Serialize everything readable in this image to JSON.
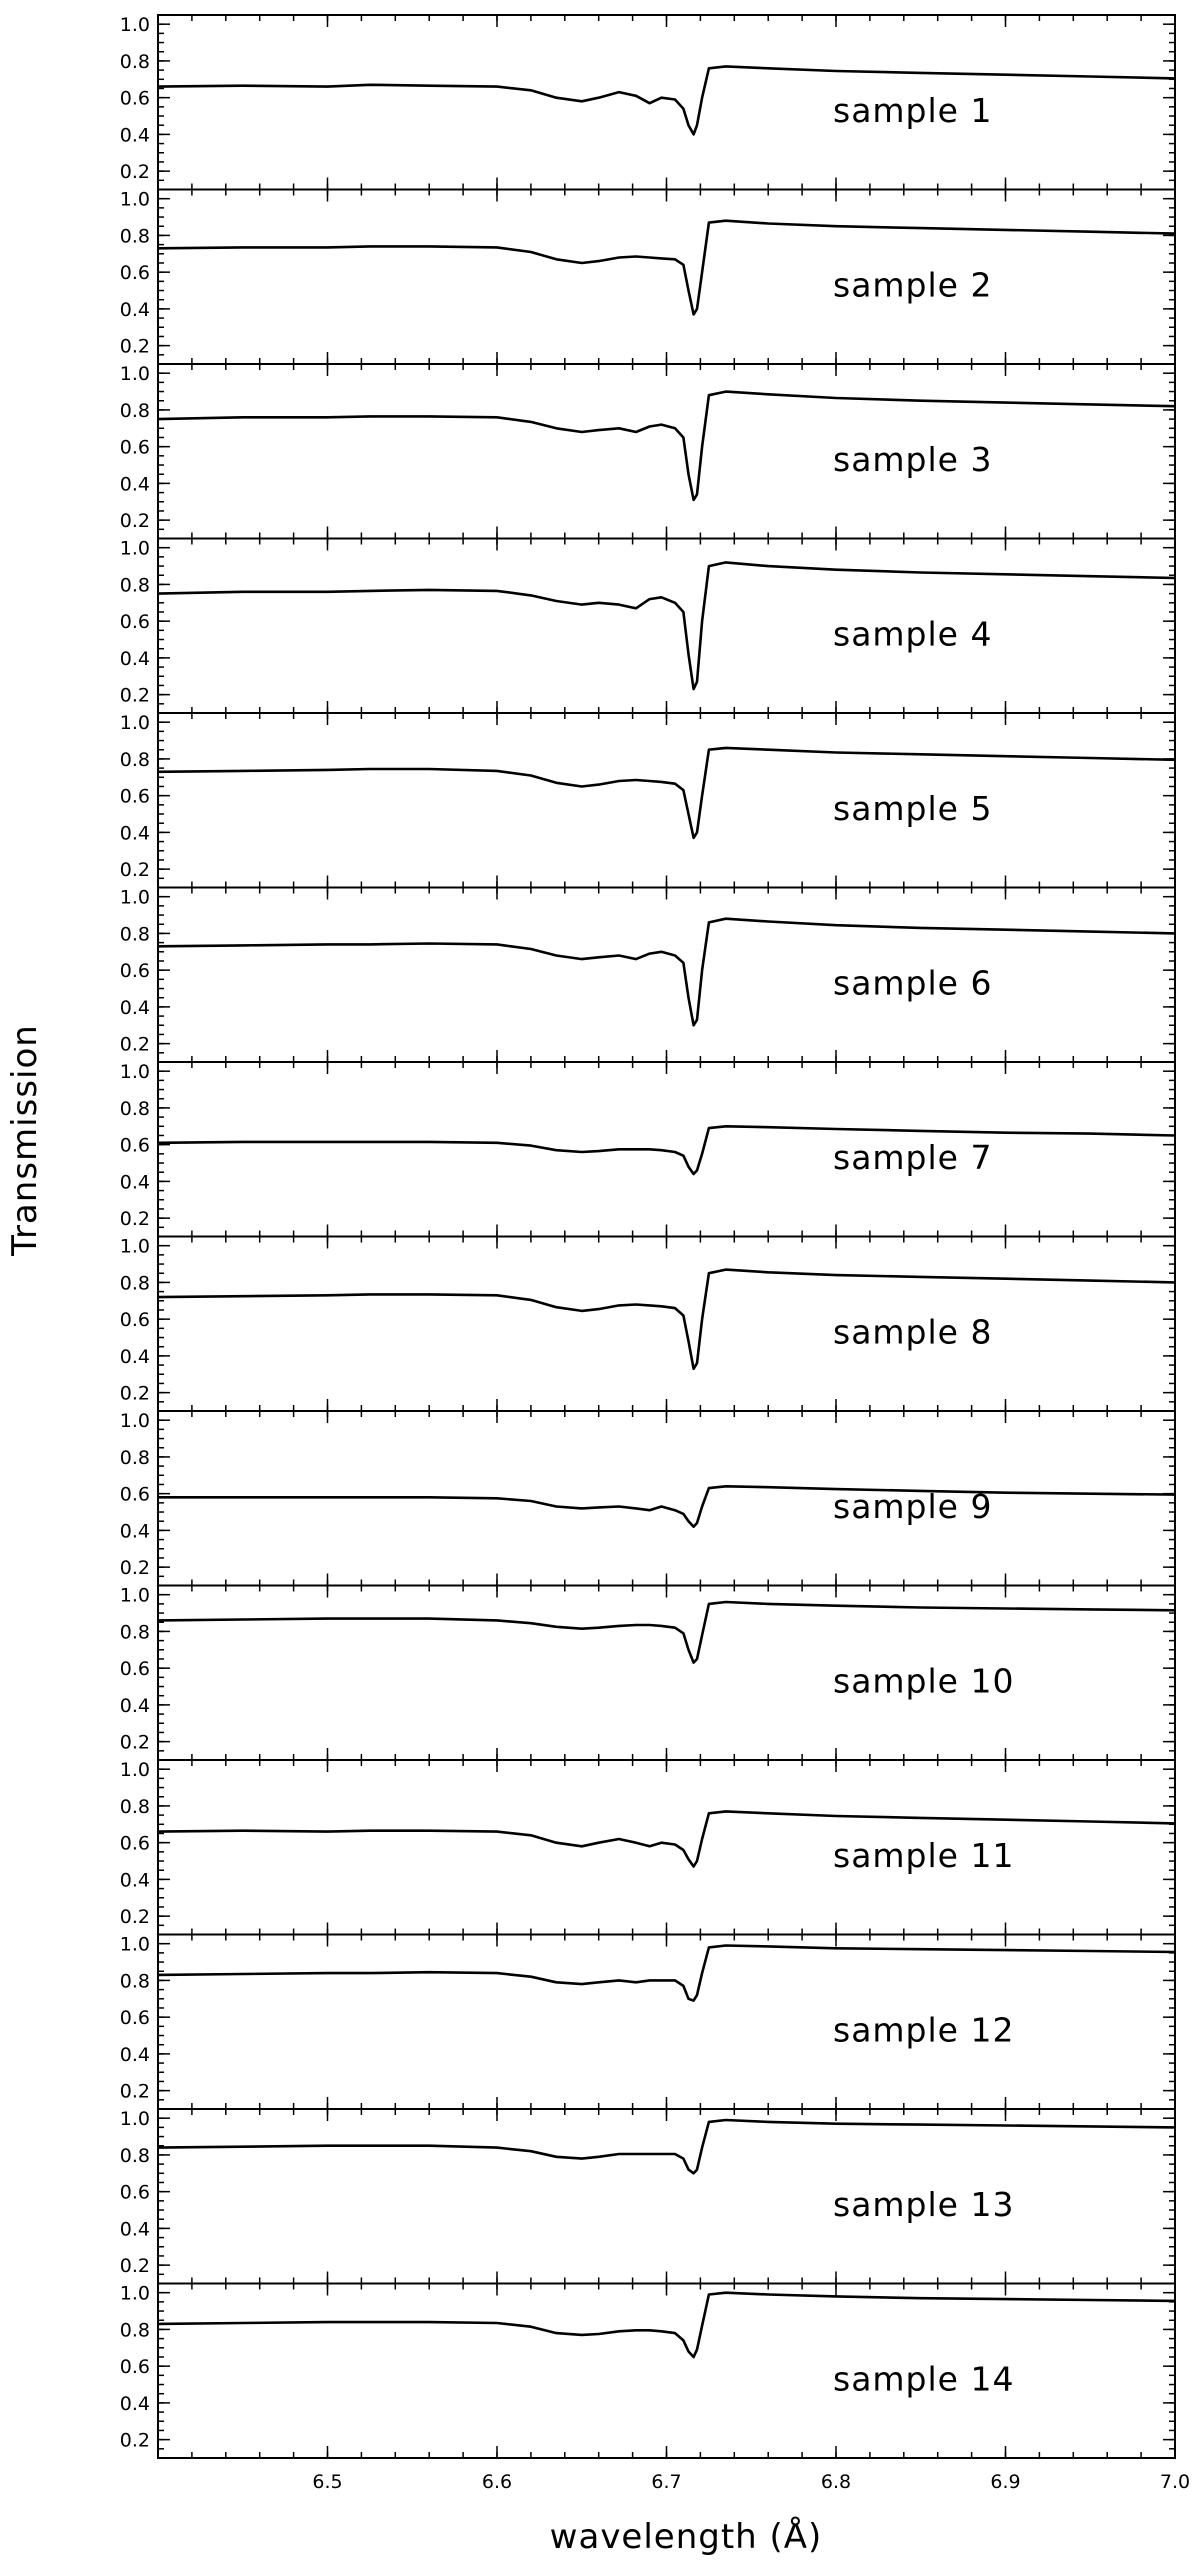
{
  "chart_data": {
    "type": "line",
    "xlabel": "wavelength (Å)",
    "ylabel": "Transmission",
    "xlim": [
      6.4,
      7.0
    ],
    "ylim": [
      0.1,
      1.05
    ],
    "x_tick_labels": [
      "6.5",
      "6.6",
      "6.7",
      "6.8",
      "6.9",
      "7.0"
    ],
    "x_ticks": [
      6.5,
      6.6,
      6.7,
      6.8,
      6.9,
      7.0
    ],
    "y_tick_labels": [
      "0.2",
      "0.4",
      "0.6",
      "0.8",
      "1.0"
    ],
    "y_ticks": [
      0.2,
      0.4,
      0.6,
      0.8,
      1.0
    ],
    "x": [
      6.4,
      6.45,
      6.5,
      6.525,
      6.56,
      6.6,
      6.62,
      6.635,
      6.65,
      6.66,
      6.672,
      6.682,
      6.69,
      6.697,
      6.705,
      6.71,
      6.713,
      6.716,
      6.718,
      6.721,
      6.725,
      6.735,
      6.76,
      6.8,
      6.85,
      6.9,
      6.95,
      7.0
    ],
    "panels": [
      {
        "name": "sample 1",
        "values": [
          0.66,
          0.665,
          0.66,
          0.67,
          0.665,
          0.66,
          0.64,
          0.6,
          0.58,
          0.6,
          0.63,
          0.61,
          0.57,
          0.6,
          0.59,
          0.54,
          0.45,
          0.4,
          0.45,
          0.6,
          0.76,
          0.77,
          0.76,
          0.745,
          0.735,
          0.725,
          0.715,
          0.705
        ]
      },
      {
        "name": "sample 2",
        "values": [
          0.73,
          0.735,
          0.735,
          0.74,
          0.74,
          0.735,
          0.71,
          0.67,
          0.65,
          0.66,
          0.68,
          0.685,
          0.68,
          0.675,
          0.67,
          0.64,
          0.5,
          0.37,
          0.4,
          0.6,
          0.87,
          0.88,
          0.865,
          0.85,
          0.84,
          0.83,
          0.82,
          0.81
        ]
      },
      {
        "name": "sample 3",
        "values": [
          0.75,
          0.76,
          0.76,
          0.765,
          0.765,
          0.76,
          0.735,
          0.7,
          0.68,
          0.69,
          0.7,
          0.68,
          0.71,
          0.72,
          0.7,
          0.65,
          0.45,
          0.31,
          0.34,
          0.6,
          0.88,
          0.9,
          0.885,
          0.865,
          0.85,
          0.84,
          0.83,
          0.82
        ]
      },
      {
        "name": "sample 4",
        "values": [
          0.75,
          0.76,
          0.76,
          0.765,
          0.77,
          0.765,
          0.74,
          0.71,
          0.69,
          0.7,
          0.69,
          0.67,
          0.72,
          0.73,
          0.7,
          0.65,
          0.42,
          0.23,
          0.27,
          0.6,
          0.9,
          0.92,
          0.9,
          0.88,
          0.865,
          0.855,
          0.845,
          0.835
        ]
      },
      {
        "name": "sample 5",
        "values": [
          0.73,
          0.735,
          0.74,
          0.745,
          0.745,
          0.735,
          0.71,
          0.67,
          0.65,
          0.66,
          0.68,
          0.685,
          0.68,
          0.675,
          0.665,
          0.63,
          0.5,
          0.37,
          0.4,
          0.6,
          0.85,
          0.86,
          0.85,
          0.835,
          0.825,
          0.815,
          0.805,
          0.795
        ]
      },
      {
        "name": "sample 6",
        "values": [
          0.73,
          0.735,
          0.74,
          0.74,
          0.745,
          0.74,
          0.715,
          0.68,
          0.66,
          0.67,
          0.68,
          0.66,
          0.69,
          0.7,
          0.68,
          0.64,
          0.45,
          0.3,
          0.33,
          0.6,
          0.86,
          0.88,
          0.865,
          0.845,
          0.83,
          0.82,
          0.81,
          0.8
        ]
      },
      {
        "name": "sample 7",
        "values": [
          0.61,
          0.615,
          0.615,
          0.615,
          0.615,
          0.61,
          0.595,
          0.57,
          0.56,
          0.565,
          0.575,
          0.575,
          0.575,
          0.57,
          0.56,
          0.54,
          0.48,
          0.44,
          0.46,
          0.55,
          0.69,
          0.7,
          0.695,
          0.685,
          0.675,
          0.665,
          0.66,
          0.65
        ]
      },
      {
        "name": "sample 8",
        "values": [
          0.72,
          0.725,
          0.73,
          0.735,
          0.735,
          0.73,
          0.705,
          0.665,
          0.645,
          0.655,
          0.675,
          0.68,
          0.675,
          0.67,
          0.66,
          0.62,
          0.48,
          0.33,
          0.36,
          0.6,
          0.85,
          0.87,
          0.855,
          0.84,
          0.83,
          0.82,
          0.81,
          0.8
        ]
      },
      {
        "name": "sample 9",
        "values": [
          0.58,
          0.58,
          0.58,
          0.58,
          0.58,
          0.575,
          0.56,
          0.53,
          0.52,
          0.525,
          0.53,
          0.52,
          0.51,
          0.53,
          0.51,
          0.49,
          0.45,
          0.42,
          0.44,
          0.53,
          0.63,
          0.64,
          0.635,
          0.625,
          0.615,
          0.605,
          0.6,
          0.595
        ]
      },
      {
        "name": "sample 10",
        "values": [
          0.86,
          0.865,
          0.87,
          0.87,
          0.87,
          0.86,
          0.845,
          0.825,
          0.815,
          0.82,
          0.83,
          0.835,
          0.835,
          0.83,
          0.82,
          0.79,
          0.7,
          0.63,
          0.65,
          0.78,
          0.95,
          0.96,
          0.95,
          0.94,
          0.93,
          0.925,
          0.92,
          0.915
        ]
      },
      {
        "name": "sample 11",
        "values": [
          0.66,
          0.665,
          0.66,
          0.665,
          0.665,
          0.66,
          0.64,
          0.6,
          0.58,
          0.6,
          0.62,
          0.6,
          0.58,
          0.6,
          0.59,
          0.56,
          0.51,
          0.47,
          0.5,
          0.62,
          0.76,
          0.77,
          0.76,
          0.745,
          0.735,
          0.725,
          0.715,
          0.705
        ]
      },
      {
        "name": "sample 12",
        "values": [
          0.83,
          0.835,
          0.84,
          0.84,
          0.845,
          0.84,
          0.82,
          0.79,
          0.78,
          0.79,
          0.8,
          0.79,
          0.8,
          0.8,
          0.8,
          0.77,
          0.7,
          0.69,
          0.72,
          0.84,
          0.98,
          0.99,
          0.985,
          0.975,
          0.97,
          0.965,
          0.96,
          0.955
        ]
      },
      {
        "name": "sample 13",
        "values": [
          0.84,
          0.845,
          0.85,
          0.85,
          0.85,
          0.84,
          0.82,
          0.79,
          0.78,
          0.79,
          0.805,
          0.805,
          0.805,
          0.805,
          0.805,
          0.78,
          0.72,
          0.7,
          0.72,
          0.84,
          0.98,
          0.99,
          0.98,
          0.97,
          0.965,
          0.96,
          0.955,
          0.95
        ]
      },
      {
        "name": "sample 14",
        "values": [
          0.83,
          0.835,
          0.84,
          0.84,
          0.84,
          0.835,
          0.815,
          0.78,
          0.77,
          0.775,
          0.79,
          0.795,
          0.795,
          0.79,
          0.78,
          0.74,
          0.68,
          0.65,
          0.69,
          0.82,
          0.99,
          1.0,
          0.99,
          0.98,
          0.97,
          0.965,
          0.96,
          0.955
        ]
      }
    ]
  }
}
